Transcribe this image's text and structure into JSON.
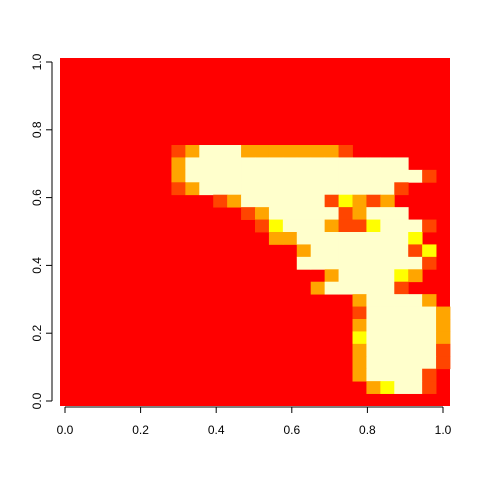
{
  "chart_data": {
    "type": "heatmap",
    "title": "",
    "xlabel": "",
    "ylabel": "",
    "xlim": [
      0,
      1
    ],
    "ylim": [
      0,
      1
    ],
    "x_ticks": [
      "0.0",
      "0.2",
      "0.4",
      "0.6",
      "0.8",
      "1.0"
    ],
    "y_ticks": [
      "0.0",
      "0.2",
      "0.4",
      "0.6",
      "0.8",
      "1.0"
    ],
    "grid": false,
    "legend": "none",
    "colors": [
      "#ff0000",
      "#ff4500",
      "#ffa500",
      "#ffff00",
      "#ffffcc"
    ],
    "nrows": 28,
    "ncols": 28,
    "rows": [
      "............................",
      "............................",
      "............................",
      "............................",
      "............................",
      "............................",
      "............................",
      "........1244422222221.......",
      "........24444444444444444...",
      "........2444444444444444441.",
      "........12444444444444441...",
      "...........1244444413212....",
      ".............124444412444...",
      "..............1344421134441.",
      "...............22444444443..",
      ".................2444444413.",
      ".................4444444441.",
      "...................2444432..",
      "..................2444441...",
      ".....................244442.",
      ".....................1444442",
      ".....................2444442",
      ".....................3444442",
      ".....................2444441",
      ".....................2444441",
      ".....................244441.",
      "......................23441.",
      "............................"
    ]
  }
}
